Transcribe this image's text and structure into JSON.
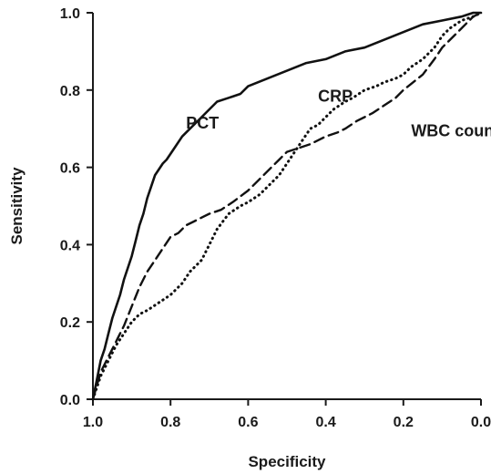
{
  "chart_data": {
    "type": "line",
    "title": "",
    "xlabel": "Specificity",
    "ylabel": "Sensitivity",
    "xlim": [
      1.0,
      0.0
    ],
    "ylim": [
      0.0,
      1.0
    ],
    "x_reversed": true,
    "xticks": [
      "1.0",
      "0.8",
      "0.6",
      "0.4",
      "0.2",
      "0.0"
    ],
    "yticks": [
      "0.0",
      "0.2",
      "0.4",
      "0.6",
      "0.8",
      "1.0"
    ],
    "grid": false,
    "legend": "none",
    "series": [
      {
        "name": "PCT",
        "style": "solid",
        "x": [
          1.0,
          0.99,
          0.98,
          0.97,
          0.96,
          0.95,
          0.93,
          0.92,
          0.9,
          0.89,
          0.88,
          0.87,
          0.86,
          0.85,
          0.84,
          0.82,
          0.81,
          0.79,
          0.77,
          0.75,
          0.74,
          0.72,
          0.7,
          0.68,
          0.65,
          0.62,
          0.6,
          0.55,
          0.5,
          0.45,
          0.4,
          0.35,
          0.3,
          0.25,
          0.2,
          0.15,
          0.1,
          0.05,
          0.02,
          0.0
        ],
        "y": [
          0.0,
          0.05,
          0.1,
          0.13,
          0.17,
          0.21,
          0.27,
          0.31,
          0.37,
          0.41,
          0.45,
          0.48,
          0.52,
          0.55,
          0.58,
          0.61,
          0.62,
          0.65,
          0.68,
          0.7,
          0.71,
          0.73,
          0.75,
          0.77,
          0.78,
          0.79,
          0.81,
          0.83,
          0.85,
          0.87,
          0.88,
          0.9,
          0.91,
          0.93,
          0.95,
          0.97,
          0.98,
          0.99,
          1.0,
          1.0
        ]
      },
      {
        "name": "CRP",
        "style": "dotted",
        "x": [
          1.0,
          0.98,
          0.96,
          0.94,
          0.92,
          0.9,
          0.88,
          0.86,
          0.83,
          0.8,
          0.77,
          0.75,
          0.72,
          0.7,
          0.68,
          0.65,
          0.62,
          0.6,
          0.57,
          0.55,
          0.52,
          0.5,
          0.48,
          0.46,
          0.44,
          0.42,
          0.4,
          0.38,
          0.35,
          0.33,
          0.3,
          0.27,
          0.25,
          0.22,
          0.2,
          0.18,
          0.15,
          0.12,
          0.1,
          0.08,
          0.05,
          0.02,
          0.0
        ],
        "y": [
          0.0,
          0.06,
          0.1,
          0.14,
          0.17,
          0.2,
          0.22,
          0.23,
          0.25,
          0.27,
          0.3,
          0.33,
          0.36,
          0.4,
          0.44,
          0.48,
          0.5,
          0.51,
          0.53,
          0.55,
          0.58,
          0.61,
          0.64,
          0.67,
          0.7,
          0.71,
          0.73,
          0.75,
          0.77,
          0.78,
          0.8,
          0.81,
          0.82,
          0.83,
          0.84,
          0.86,
          0.88,
          0.91,
          0.94,
          0.96,
          0.98,
          0.99,
          1.0
        ]
      },
      {
        "name": "WBC count",
        "style": "dashed",
        "x": [
          1.0,
          0.98,
          0.96,
          0.94,
          0.92,
          0.9,
          0.88,
          0.86,
          0.84,
          0.82,
          0.8,
          0.78,
          0.76,
          0.74,
          0.72,
          0.7,
          0.67,
          0.64,
          0.6,
          0.57,
          0.55,
          0.52,
          0.5,
          0.47,
          0.44,
          0.42,
          0.4,
          0.37,
          0.35,
          0.32,
          0.3,
          0.28,
          0.25,
          0.22,
          0.2,
          0.15,
          0.12,
          0.1,
          0.05,
          0.02,
          0.0
        ],
        "y": [
          0.0,
          0.07,
          0.11,
          0.15,
          0.19,
          0.24,
          0.29,
          0.33,
          0.36,
          0.39,
          0.42,
          0.43,
          0.45,
          0.46,
          0.47,
          0.48,
          0.49,
          0.51,
          0.54,
          0.57,
          0.59,
          0.62,
          0.64,
          0.65,
          0.66,
          0.67,
          0.68,
          0.69,
          0.7,
          0.72,
          0.73,
          0.74,
          0.76,
          0.78,
          0.8,
          0.84,
          0.88,
          0.91,
          0.96,
          0.99,
          1.0
        ]
      }
    ],
    "annotations": [
      {
        "text": "PCT",
        "x": 0.76,
        "y": 0.7
      },
      {
        "text": "CRP",
        "x": 0.42,
        "y": 0.77
      },
      {
        "text": "WBC count",
        "x": 0.18,
        "y": 0.68
      }
    ]
  }
}
